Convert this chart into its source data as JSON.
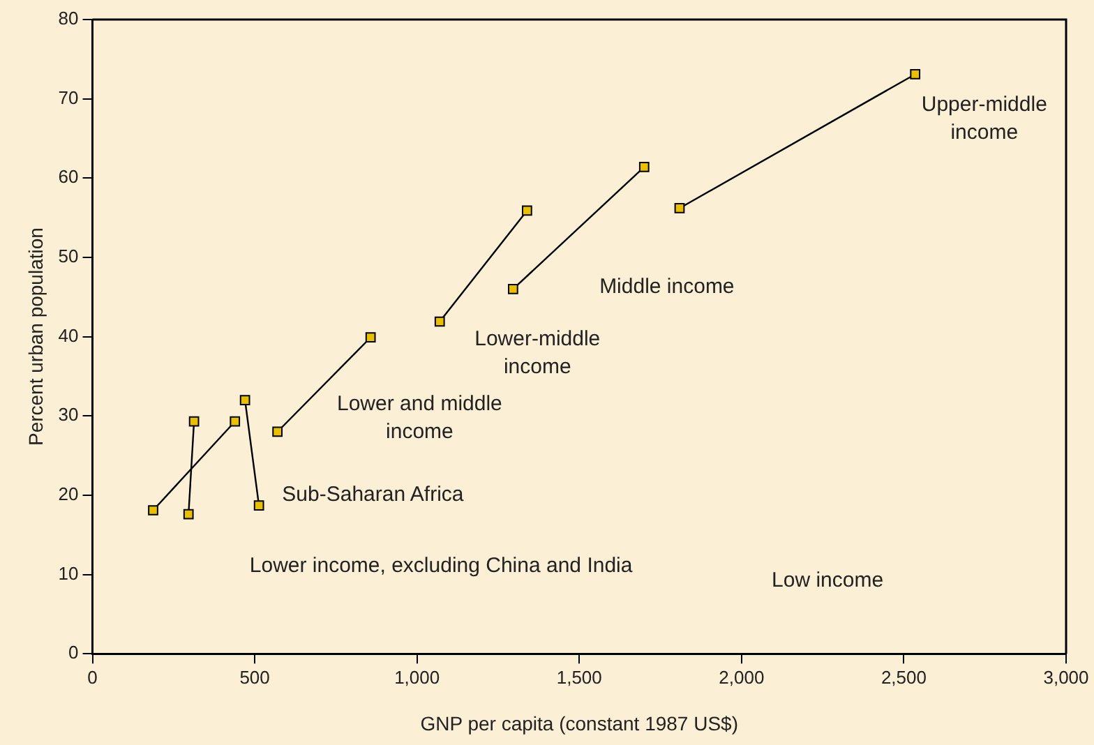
{
  "chart_data": {
    "type": "line",
    "xlabel": "GNP per capita (constant 1987 US$)",
    "ylabel": "Percent urban population",
    "xlim": [
      0,
      3000
    ],
    "xticks": [
      0,
      500,
      {
        "value": 1000,
        "label": "1,000"
      },
      {
        "value": 1500,
        "label": "1,500"
      },
      {
        "value": 2000,
        "label": "2,000"
      },
      {
        "value": 2500,
        "label": "2,500"
      },
      {
        "value": 3000,
        "label": "3,000"
      }
    ],
    "ylim": [
      0,
      80
    ],
    "yticks": [
      0,
      10,
      20,
      30,
      40,
      50,
      60,
      70,
      80
    ],
    "marker": "square",
    "line_style": "solid",
    "grid": false,
    "legend": false,
    "series": [
      {
        "color": "#e8c000",
        "x": [
          187,
          439
        ],
        "values": [
          18.1,
          29.3
        ]
      },
      {
        "color": "#e8c000",
        "x": [
          296,
          313
        ],
        "values": [
          17.6,
          29.3
        ]
      },
      {
        "color": "#e8c000",
        "x": [
          470,
          513
        ],
        "values": [
          32.0,
          18.7
        ]
      },
      {
        "color": "#e8c000",
        "x": [
          570,
          857
        ],
        "values": [
          28.0,
          39.9
        ]
      },
      {
        "color": "#e8c000",
        "x": [
          1070,
          1339
        ],
        "values": [
          41.9,
          55.9
        ]
      },
      {
        "color": "#e8c000",
        "x": [
          1296,
          1700
        ],
        "values": [
          46.0,
          61.4
        ]
      },
      {
        "color": "#e8c000",
        "x": [
          1809,
          2535
        ],
        "values": [
          56.2,
          73.1
        ]
      }
    ],
    "annotations": [
      "Sub-Saharan Africa",
      "Lower income, excluding China and India",
      "Low income",
      "Lower and middle\nincome",
      "Lower-middle\nincome",
      "Middle income",
      "Upper-middle\nincome"
    ]
  }
}
